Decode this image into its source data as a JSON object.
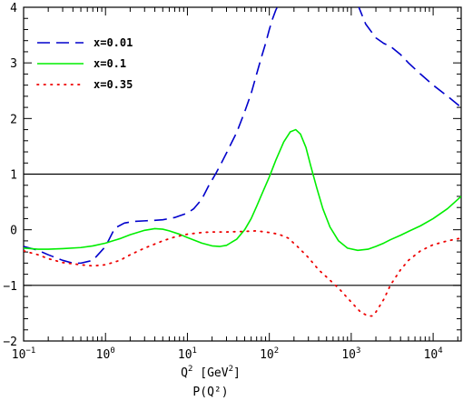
{
  "chart_data": {
    "type": "line",
    "xlabel_html": {
      "base": "Q",
      "sup1": "2",
      "mid": " [GeV",
      "sup2": "2",
      "end": "]"
    },
    "xlabel_sub": "P(Q²)",
    "x_scale": "log",
    "xlim": [
      0.1,
      22000
    ],
    "ylim": [
      -2,
      4
    ],
    "x_ticks": [
      {
        "value": 0.1,
        "base": "10",
        "exp": "−1"
      },
      {
        "value": 1,
        "base": "10",
        "exp": "0"
      },
      {
        "value": 10,
        "base": "10",
        "exp": "1"
      },
      {
        "value": 100,
        "base": "10",
        "exp": "2"
      },
      {
        "value": 1000,
        "base": "10",
        "exp": "3"
      },
      {
        "value": 10000,
        "base": "10",
        "exp": "4"
      }
    ],
    "y_ticks": [
      {
        "value": -2,
        "label": "−2"
      },
      {
        "value": -1,
        "label": "−1"
      },
      {
        "value": 0,
        "label": "0"
      },
      {
        "value": 1,
        "label": "1"
      },
      {
        "value": 2,
        "label": "2"
      },
      {
        "value": 3,
        "label": "3"
      },
      {
        "value": 4,
        "label": "4"
      }
    ],
    "reference_lines": [
      1,
      -1
    ],
    "legend_position": "top-left",
    "series": [
      {
        "name": "x=0.01",
        "color": "#0000cc",
        "dash": "dashed",
        "x": [
          0.1,
          0.15,
          0.2,
          0.3,
          0.4,
          0.5,
          0.7,
          1.0,
          1.3,
          1.7,
          2.2,
          3,
          4,
          5,
          6,
          7,
          8,
          10,
          12,
          15,
          18,
          22,
          26,
          30,
          35,
          40,
          50,
          60,
          70,
          80,
          90,
          100,
          110,
          120,
          130,
          1200,
          1500,
          2000,
          2500,
          3000,
          4000,
          5000,
          7000,
          10000,
          15000,
          22000
        ],
        "y": [
          -0.3,
          -0.37,
          -0.45,
          -0.55,
          -0.6,
          -0.6,
          -0.55,
          -0.3,
          0.03,
          0.12,
          0.15,
          0.16,
          0.17,
          0.18,
          0.2,
          0.22,
          0.25,
          0.3,
          0.38,
          0.55,
          0.78,
          1.0,
          1.2,
          1.38,
          1.58,
          1.75,
          2.12,
          2.45,
          2.8,
          3.1,
          3.35,
          3.6,
          3.8,
          3.95,
          4.05,
          4.05,
          3.7,
          3.45,
          3.35,
          3.3,
          3.15,
          3.0,
          2.8,
          2.6,
          2.4,
          2.2
        ]
      },
      {
        "name": "x=0.1",
        "color": "#00ee00",
        "dash": "solid",
        "x": [
          0.1,
          0.15,
          0.2,
          0.3,
          0.5,
          0.7,
          1.0,
          1.5,
          2.0,
          3,
          4,
          5,
          6,
          8,
          10,
          15,
          20,
          25,
          30,
          40,
          50,
          60,
          70,
          80,
          100,
          120,
          150,
          180,
          210,
          240,
          280,
          320,
          380,
          450,
          550,
          700,
          900,
          1200,
          1600,
          2000,
          2500,
          3000,
          4000,
          5000,
          7000,
          10000,
          15000,
          22000
        ],
        "y": [
          -0.33,
          -0.35,
          -0.35,
          -0.34,
          -0.32,
          -0.29,
          -0.24,
          -0.16,
          -0.09,
          -0.01,
          0.02,
          0.01,
          -0.02,
          -0.08,
          -0.14,
          -0.24,
          -0.29,
          -0.3,
          -0.28,
          -0.17,
          0.0,
          0.2,
          0.42,
          0.62,
          0.95,
          1.25,
          1.58,
          1.76,
          1.8,
          1.72,
          1.48,
          1.15,
          0.75,
          0.38,
          0.05,
          -0.2,
          -0.33,
          -0.37,
          -0.35,
          -0.3,
          -0.24,
          -0.18,
          -0.1,
          -0.03,
          0.07,
          0.2,
          0.38,
          0.6
        ]
      },
      {
        "name": "x=0.35",
        "color": "#ee0000",
        "dash": "dotted",
        "x": [
          0.1,
          0.15,
          0.2,
          0.3,
          0.5,
          0.7,
          1.0,
          1.5,
          2,
          3,
          5,
          7,
          10,
          15,
          20,
          30,
          50,
          70,
          100,
          130,
          170,
          220,
          300,
          400,
          500,
          700,
          1000,
          1300,
          1600,
          1800,
          2000,
          2500,
          3000,
          4000,
          5000,
          7000,
          10000,
          15000,
          22000
        ],
        "y": [
          -0.38,
          -0.45,
          -0.52,
          -0.59,
          -0.63,
          -0.65,
          -0.63,
          -0.55,
          -0.45,
          -0.33,
          -0.2,
          -0.13,
          -0.08,
          -0.05,
          -0.04,
          -0.04,
          -0.03,
          -0.02,
          -0.05,
          -0.08,
          -0.15,
          -0.3,
          -0.5,
          -0.72,
          -0.85,
          -1.05,
          -1.3,
          -1.48,
          -1.55,
          -1.55,
          -1.48,
          -1.25,
          -1.0,
          -0.72,
          -0.55,
          -0.38,
          -0.27,
          -0.2,
          -0.15
        ]
      }
    ]
  }
}
